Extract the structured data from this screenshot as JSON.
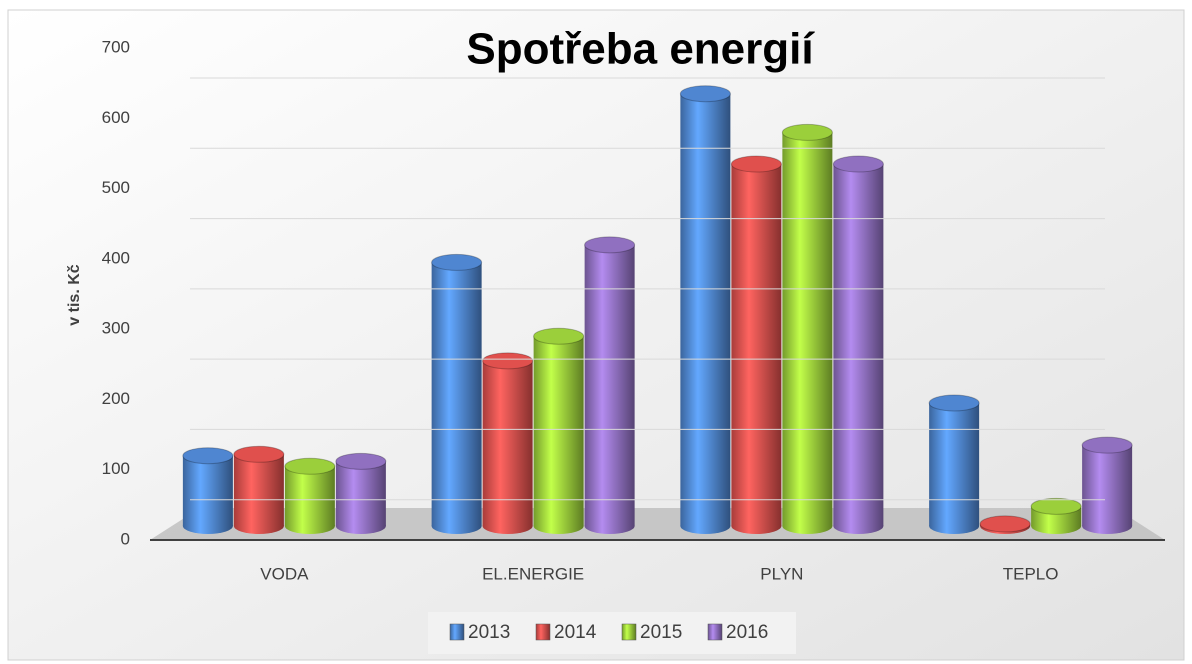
{
  "chart_data": {
    "type": "bar",
    "title": "Spotřeba energií",
    "y_label": "v tis. Kč",
    "categories": [
      "VODA",
      "EL.ENERGIE",
      "PLYN",
      "TEPLO"
    ],
    "series": [
      {
        "name": "2013",
        "color": "#4f86d1",
        "values": [
          100,
          375,
          615,
          175
        ]
      },
      {
        "name": "2014",
        "color": "#e0504d",
        "values": [
          102,
          235,
          515,
          3
        ]
      },
      {
        "name": "2015",
        "color": "#9bcf3b",
        "values": [
          85,
          270,
          560,
          28
        ]
      },
      {
        "name": "2016",
        "color": "#9070c0",
        "values": [
          92,
          400,
          515,
          115
        ]
      }
    ],
    "ylim": [
      0,
      700
    ],
    "yticks": [
      0,
      100,
      200,
      300,
      400,
      500,
      600,
      700
    ],
    "grid": true,
    "legend": "bottom"
  }
}
